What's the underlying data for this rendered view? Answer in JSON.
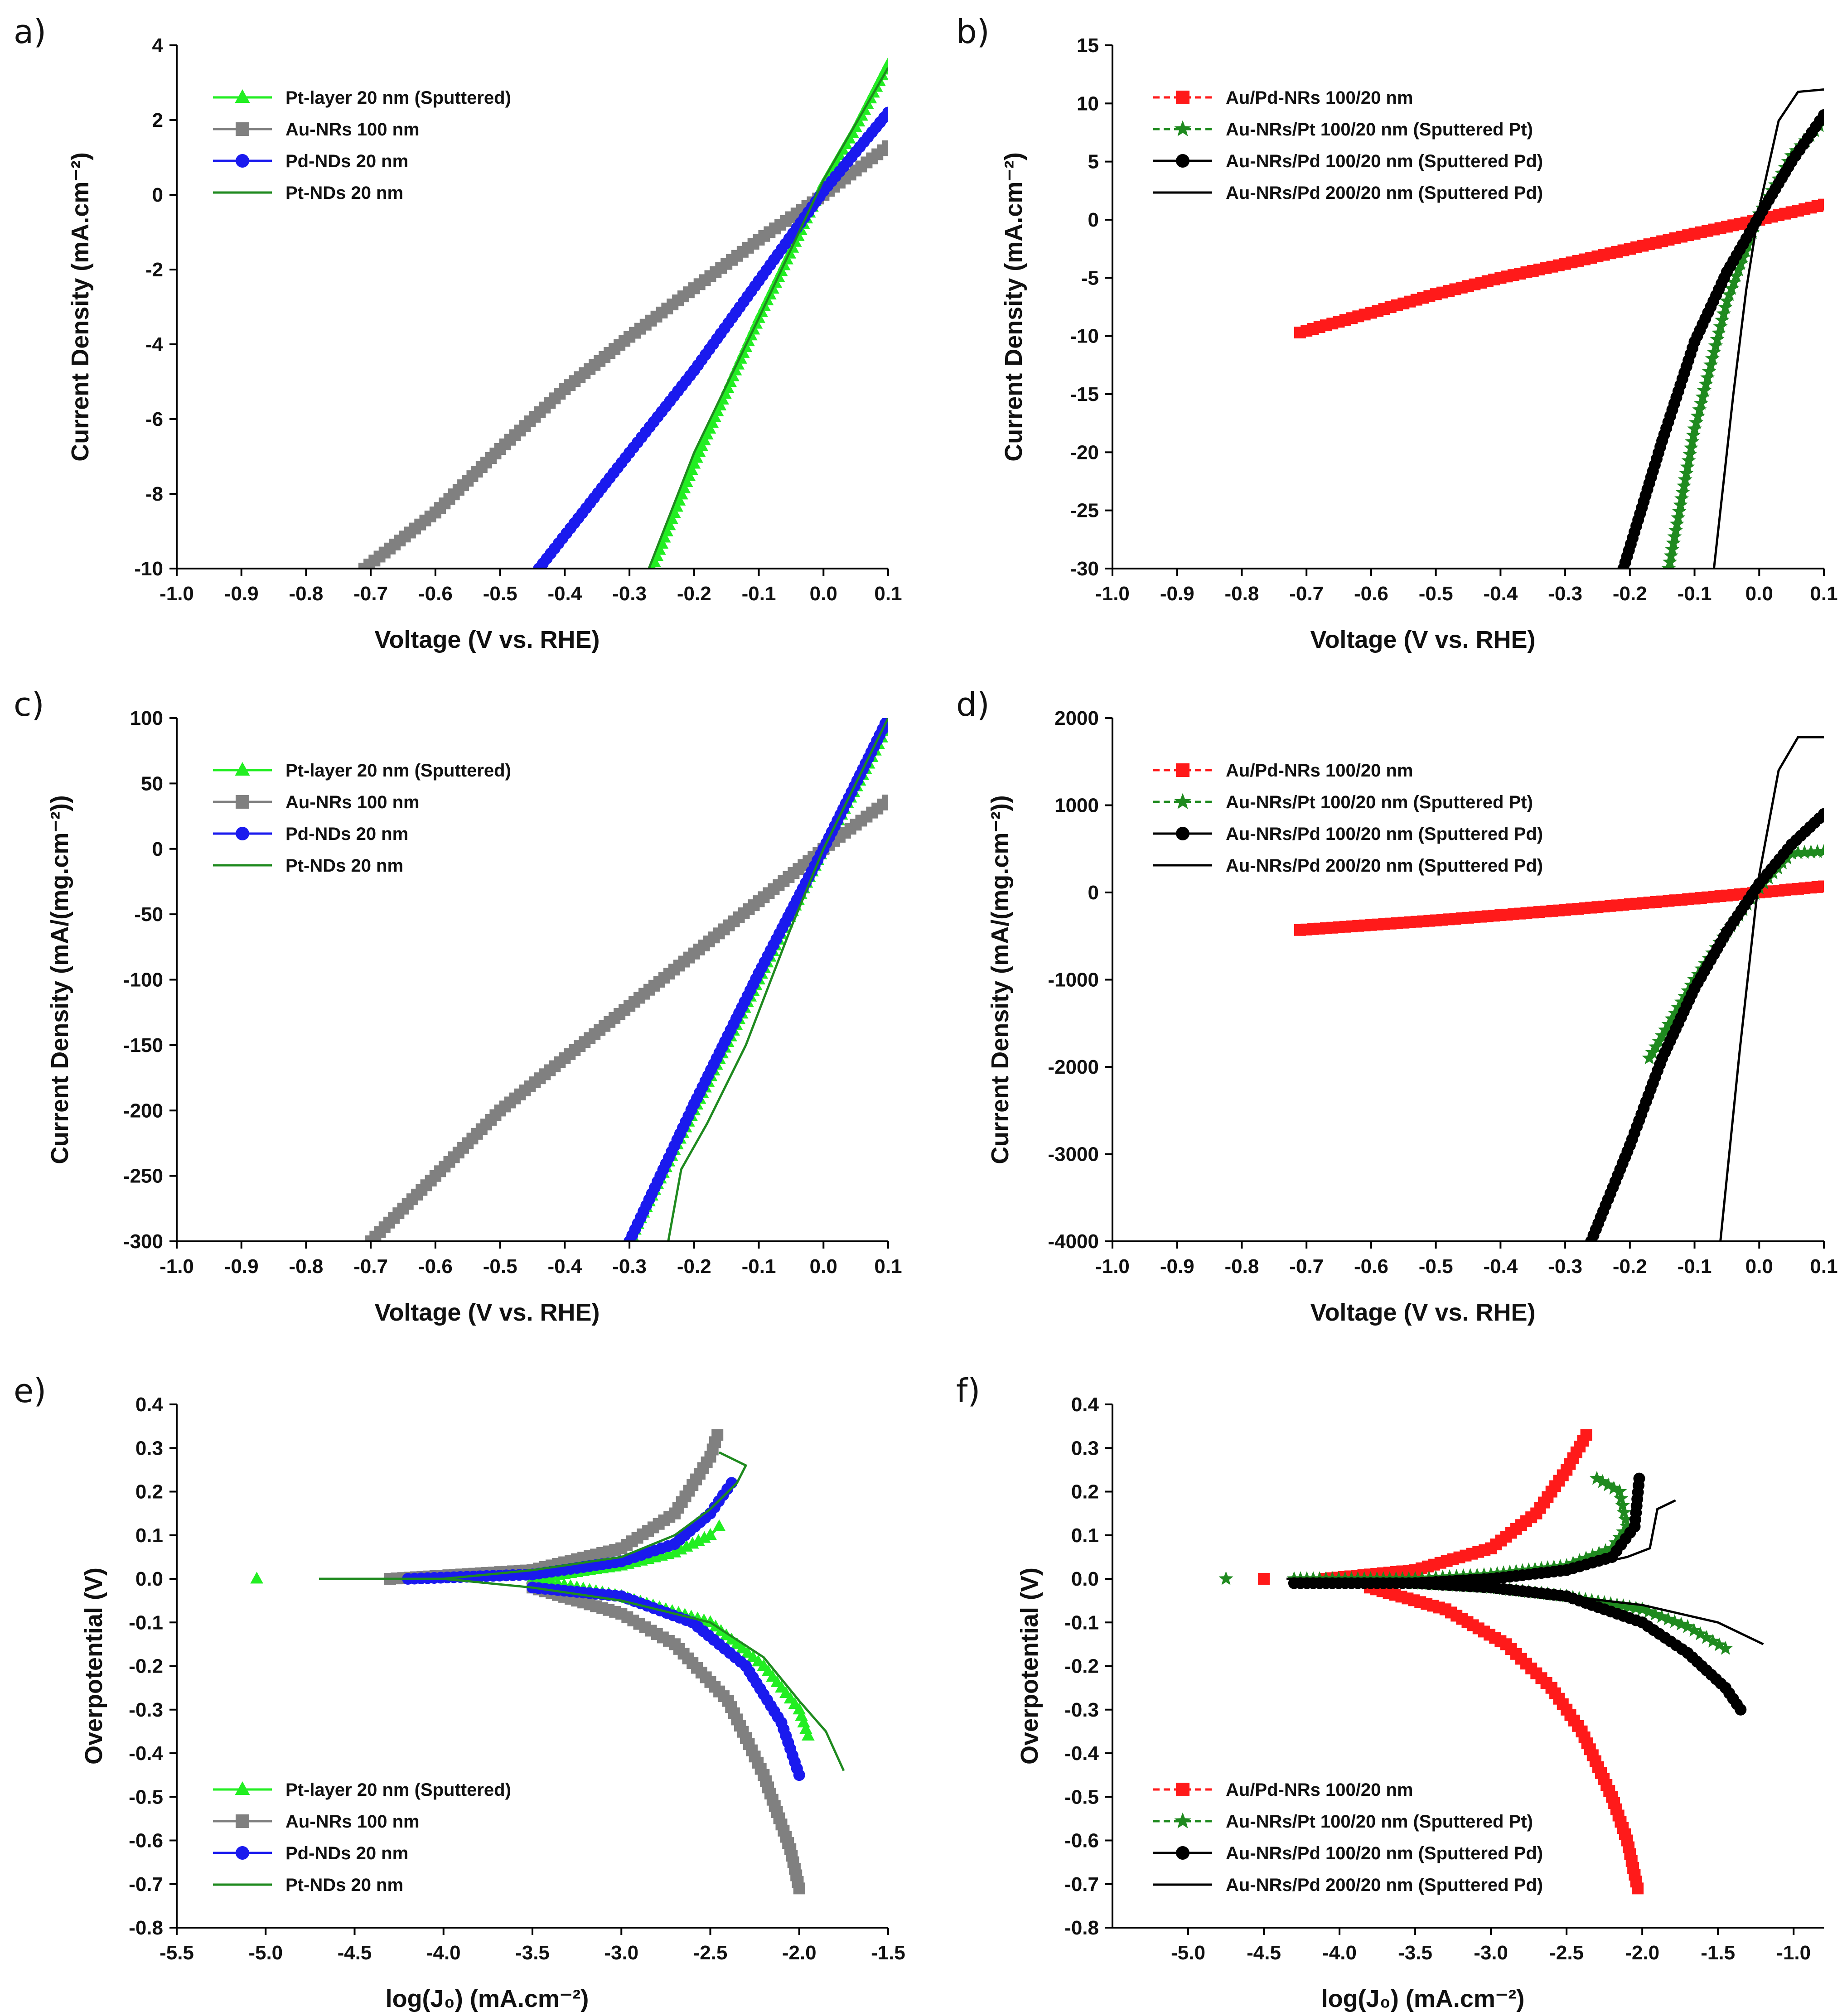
{
  "figure": {
    "description_free": true
  },
  "colors": {
    "bright_green": "#22ee22",
    "gray": "#808080",
    "blue": "#1a1aee",
    "dark_green": "#1f8a1f",
    "red": "#ff1a1a",
    "black": "#000000"
  },
  "chart_data": [
    {
      "panel": "a)",
      "type": "line",
      "xlabel": "Voltage (V vs. RHE)",
      "ylabel": "Current Density (mA.cm⁻²)",
      "xlim": [
        -1.0,
        0.1
      ],
      "ylim": [
        -10,
        4
      ],
      "xticks": [
        -1.0,
        -0.9,
        -0.8,
        -0.7,
        -0.6,
        -0.5,
        -0.4,
        -0.3,
        -0.2,
        -0.1,
        0.0,
        0.1
      ],
      "xtick_labels": [
        "-1.0",
        "-0.9",
        "-0.8",
        "-0.7",
        "-0.6",
        "-0.5",
        "-0.4",
        "-0.3",
        "-0.2",
        "-0.1",
        "0.0",
        "0.1"
      ],
      "yticks": [
        -10,
        -8,
        -6,
        -4,
        -2,
        0,
        2,
        4
      ],
      "ytick_labels": [
        "-10",
        "-8",
        "-6",
        "-4",
        "-2",
        "0",
        "2",
        "4"
      ],
      "legend_position": "top-left",
      "series": [
        {
          "name": "Pt-layer 20 nm (Sputtered)",
          "color": "#22ee22",
          "marker": "triangle",
          "line": "solid",
          "x": [
            -0.265,
            -0.2,
            -0.1,
            0.0,
            0.05,
            0.1
          ],
          "y": [
            -10,
            -7.2,
            -3.3,
            0.3,
            1.8,
            3.5
          ]
        },
        {
          "name": "Au-NRs 100 nm",
          "color": "#808080",
          "marker": "square",
          "line": "solid",
          "x": [
            -0.71,
            -0.6,
            -0.5,
            -0.4,
            -0.3,
            -0.2,
            -0.1,
            0.0,
            0.1
          ],
          "y": [
            -10,
            -8.5,
            -6.8,
            -5.2,
            -3.8,
            -2.5,
            -1.2,
            0.0,
            1.3
          ]
        },
        {
          "name": "Pd-NDs 20 nm",
          "color": "#1a1aee",
          "marker": "circle",
          "line": "solid",
          "x": [
            -0.44,
            -0.3,
            -0.2,
            -0.1,
            0.0,
            0.1
          ],
          "y": [
            -10,
            -6.9,
            -4.7,
            -2.3,
            0.1,
            2.2
          ]
        },
        {
          "name": "Pt-NDs 20 nm",
          "color": "#1f8a1f",
          "marker": "none",
          "line": "solid",
          "x": [
            -0.27,
            -0.2,
            -0.1,
            0.0,
            0.1
          ],
          "y": [
            -10,
            -6.9,
            -3.3,
            0.4,
            3.4
          ]
        }
      ]
    },
    {
      "panel": "b)",
      "type": "line",
      "xlabel": "Voltage (V vs. RHE)",
      "ylabel": "Current Density (mA.cm⁻²)",
      "xlim": [
        -1.0,
        0.1
      ],
      "ylim": [
        -30,
        15
      ],
      "xticks": [
        -1.0,
        -0.9,
        -0.8,
        -0.7,
        -0.6,
        -0.5,
        -0.4,
        -0.3,
        -0.2,
        -0.1,
        0.0,
        0.1
      ],
      "xtick_labels": [
        "-1.0",
        "-0.9",
        "-0.8",
        "-0.7",
        "-0.6",
        "-0.5",
        "-0.4",
        "-0.3",
        "-0.2",
        "-0.1",
        "0.0",
        "0.1"
      ],
      "yticks": [
        -30,
        -25,
        -20,
        -15,
        -10,
        -5,
        0,
        5,
        10,
        15
      ],
      "ytick_labels": [
        "-30",
        "-25",
        "-20",
        "-15",
        "-10",
        "-5",
        "0",
        "5",
        "10",
        "15"
      ],
      "legend_position": "top-left",
      "series": [
        {
          "name": "Au/Pd-NRs 100/20 nm",
          "color": "#ff1a1a",
          "marker": "square",
          "line": "dashed",
          "x": [
            -0.71,
            -0.6,
            -0.5,
            -0.4,
            -0.3,
            -0.2,
            -0.1,
            0.0,
            0.1
          ],
          "y": [
            -9.7,
            -8.0,
            -6.4,
            -5.0,
            -3.8,
            -2.5,
            -1.2,
            0.0,
            1.3
          ]
        },
        {
          "name": "Au-NRs/Pt 100/20 nm (Sputtered Pt)",
          "color": "#1f8a1f",
          "marker": "star",
          "line": "dashed",
          "x": [
            -0.14,
            -0.1,
            -0.05,
            0.0,
            0.05,
            0.1
          ],
          "y": [
            -30,
            -18,
            -7,
            0.5,
            5.5,
            8.5
          ]
        },
        {
          "name": "Au-NRs/Pd 100/20 nm (Sputtered Pd)",
          "color": "#000000",
          "marker": "circle",
          "line": "solid",
          "x": [
            -0.21,
            -0.15,
            -0.1,
            -0.05,
            0.0,
            0.05,
            0.1
          ],
          "y": [
            -30,
            -19,
            -10.5,
            -4.5,
            0.3,
            5.0,
            9.0
          ]
        },
        {
          "name": "Au-NRs/Pd 200/20 nm (Sputtered Pd)",
          "color": "#000000",
          "marker": "none",
          "line": "solid",
          "x": [
            -0.07,
            -0.04,
            -0.02,
            0.0,
            0.03,
            0.06,
            0.1
          ],
          "y": [
            -30,
            -15,
            -6,
            1.0,
            8.5,
            11.0,
            11.2
          ]
        }
      ]
    },
    {
      "panel": "c)",
      "type": "line",
      "xlabel": "Voltage (V vs. RHE)",
      "ylabel": "Current Density (mA/(mg.cm⁻²))",
      "xlim": [
        -1.0,
        0.1
      ],
      "ylim": [
        -300,
        100
      ],
      "xticks": [
        -1.0,
        -0.9,
        -0.8,
        -0.7,
        -0.6,
        -0.5,
        -0.4,
        -0.3,
        -0.2,
        -0.1,
        0.0,
        0.1
      ],
      "xtick_labels": [
        "-1.0",
        "-0.9",
        "-0.8",
        "-0.7",
        "-0.6",
        "-0.5",
        "-0.4",
        "-0.3",
        "-0.2",
        "-0.1",
        "0.0",
        "0.1"
      ],
      "yticks": [
        -300,
        -250,
        -200,
        -150,
        -100,
        -50,
        0,
        50,
        100
      ],
      "ytick_labels": [
        "-300",
        "-250",
        "-200",
        "-150",
        "-100",
        "-50",
        "0",
        "50",
        "100"
      ],
      "legend_position": "top-left",
      "series": [
        {
          "name": "Pt-layer 20 nm (Sputtered)",
          "color": "#22ee22",
          "marker": "triangle",
          "line": "solid",
          "x": [
            -0.3,
            -0.2,
            -0.1,
            0.0,
            0.07,
            0.1
          ],
          "y": [
            -300,
            -200,
            -100,
            0,
            65,
            95
          ]
        },
        {
          "name": "Au-NRs 100 nm",
          "color": "#808080",
          "marker": "square",
          "line": "solid",
          "x": [
            -0.7,
            -0.6,
            -0.5,
            -0.4,
            -0.3,
            -0.2,
            -0.1,
            0.0,
            0.1
          ],
          "y": [
            -300,
            -250,
            -200,
            -160,
            -120,
            -80,
            -40,
            0,
            37
          ]
        },
        {
          "name": "Pd-NDs 20 nm",
          "color": "#1a1aee",
          "marker": "circle",
          "line": "solid",
          "x": [
            -0.3,
            -0.2,
            -0.1,
            0.0,
            0.1
          ],
          "y": [
            -300,
            -195,
            -95,
            0,
            100
          ]
        },
        {
          "name": "Pt-NDs 20 nm",
          "color": "#1f8a1f",
          "marker": "none",
          "line": "solid",
          "x": [
            -0.24,
            -0.22,
            -0.18,
            -0.12,
            -0.05,
            0.0,
            0.1
          ],
          "y": [
            -300,
            -245,
            -210,
            -150,
            -60,
            0,
            100
          ]
        }
      ]
    },
    {
      "panel": "d)",
      "type": "line",
      "xlabel": "Voltage (V vs. RHE)",
      "ylabel": "Current Density (mA/(mg.cm⁻²))",
      "xlim": [
        -1.0,
        0.1
      ],
      "ylim": [
        -4000,
        2000
      ],
      "xticks": [
        -1.0,
        -0.9,
        -0.8,
        -0.7,
        -0.6,
        -0.5,
        -0.4,
        -0.3,
        -0.2,
        -0.1,
        0.0,
        0.1
      ],
      "xtick_labels": [
        "-1.0",
        "-0.9",
        "-0.8",
        "-0.7",
        "-0.6",
        "-0.5",
        "-0.4",
        "-0.3",
        "-0.2",
        "-0.1",
        "0.0",
        "0.1"
      ],
      "yticks": [
        -4000,
        -3000,
        -2000,
        -1000,
        0,
        1000,
        2000
      ],
      "ytick_labels": [
        "-4000",
        "-3000",
        "-2000",
        "-1000",
        "0",
        "1000",
        "2000"
      ],
      "legend_position": "top-left",
      "series": [
        {
          "name": "Au/Pd-NRs 100/20 nm",
          "color": "#ff1a1a",
          "marker": "square",
          "line": "dashed",
          "x": [
            -0.71,
            -0.5,
            -0.3,
            -0.1,
            0.0,
            0.1
          ],
          "y": [
            -430,
            -320,
            -200,
            -70,
            0,
            70
          ]
        },
        {
          "name": "Au-NRs/Pt 100/20 nm (Sputtered Pt)",
          "color": "#1f8a1f",
          "marker": "star",
          "line": "dashed",
          "x": [
            -0.17,
            -0.1,
            -0.05,
            0.0,
            0.05,
            0.1
          ],
          "y": [
            -1900,
            -1000,
            -450,
            50,
            450,
            470
          ]
        },
        {
          "name": "Au-NRs/Pd 100/20 nm (Sputtered Pd)",
          "color": "#000000",
          "marker": "circle",
          "line": "solid",
          "x": [
            -0.26,
            -0.2,
            -0.15,
            -0.1,
            -0.05,
            0.0,
            0.05,
            0.1
          ],
          "y": [
            -4000,
            -2900,
            -1900,
            -1100,
            -450,
            100,
            550,
            900
          ]
        },
        {
          "name": "Au-NRs/Pd 200/20 nm (Sputtered Pd)",
          "color": "#000000",
          "marker": "none",
          "line": "solid",
          "x": [
            -0.06,
            -0.03,
            0.0,
            0.03,
            0.06,
            0.1
          ],
          "y": [
            -4000,
            -1800,
            200,
            1400,
            1780,
            1780
          ]
        }
      ]
    },
    {
      "panel": "e)",
      "type": "line",
      "xlabel": "log(J₀) (mA.cm⁻²)",
      "ylabel": "Overpotential (V)",
      "xlim": [
        -5.5,
        -1.5
      ],
      "ylim": [
        -0.8,
        0.4
      ],
      "xticks": [
        -5.5,
        -5.0,
        -4.5,
        -4.0,
        -3.5,
        -3.0,
        -2.5,
        -2.0,
        -1.5
      ],
      "xtick_labels": [
        "-5.5",
        "-5.0",
        "-4.5",
        "-4.0",
        "-3.5",
        "-3.0",
        "-2.5",
        "-2.0",
        "-1.5"
      ],
      "yticks": [
        -0.8,
        -0.7,
        -0.6,
        -0.5,
        -0.4,
        -0.3,
        -0.2,
        -0.1,
        0.0,
        0.1,
        0.2,
        0.3,
        0.4
      ],
      "ytick_labels": [
        "-0.8",
        "-0.7",
        "-0.6",
        "-0.5",
        "-0.4",
        "-0.3",
        "-0.2",
        "-0.1",
        "0.0",
        "0.1",
        "0.2",
        "0.3",
        "0.4"
      ],
      "legend_position": "bottom-left",
      "series": [
        {
          "name": "Pt-layer 20 nm (Sputtered)",
          "color": "#22ee22",
          "marker": "triangle",
          "line": "solid",
          "x": [
            -3.5,
            -3.0,
            -2.7,
            -2.5,
            -2.45,
            null,
            -3.5,
            -3.0,
            -2.5,
            -2.2,
            -2.0,
            -1.95
          ],
          "y": [
            0.0,
            0.03,
            0.06,
            0.1,
            0.12,
            null,
            0.0,
            -0.04,
            -0.1,
            -0.2,
            -0.3,
            -0.36
          ]
        },
        {
          "name": "Au-NRs 100 nm",
          "color": "#808080",
          "marker": "square",
          "line": "solid",
          "x": [
            -4.3,
            -3.5,
            -3.0,
            -2.7,
            -2.5,
            -2.46,
            null,
            -3.5,
            -3.0,
            -2.7,
            -2.4,
            -2.2,
            -2.05,
            -2.0
          ],
          "y": [
            0.0,
            0.02,
            0.07,
            0.15,
            0.28,
            0.33,
            null,
            -0.02,
            -0.08,
            -0.15,
            -0.28,
            -0.45,
            -0.62,
            -0.71
          ]
        },
        {
          "name": "Pd-NDs 20 nm",
          "color": "#1a1aee",
          "marker": "circle",
          "line": "solid",
          "x": [
            -4.2,
            -3.5,
            -3.0,
            -2.7,
            -2.5,
            -2.38,
            null,
            -3.5,
            -3.0,
            -2.6,
            -2.3,
            -2.1,
            -2.0
          ],
          "y": [
            0.0,
            0.01,
            0.04,
            0.08,
            0.15,
            0.22,
            null,
            -0.02,
            -0.04,
            -0.1,
            -0.2,
            -0.33,
            -0.45
          ]
        },
        {
          "name": "Pt-NDs 20 nm",
          "color": "#1f8a1f",
          "marker": "none",
          "line": "solid",
          "x": [
            -4.7,
            -4.0,
            -3.5,
            -3.0,
            -2.7,
            -2.5,
            -2.35,
            -2.3,
            -2.45,
            null,
            -4.0,
            -3.5,
            -3.0,
            -2.5,
            -2.2,
            -2.0,
            -1.85,
            -1.75
          ],
          "y": [
            0.0,
            0.0,
            0.02,
            0.05,
            0.1,
            0.16,
            0.22,
            0.26,
            0.29,
            null,
            0.0,
            -0.02,
            -0.05,
            -0.1,
            -0.18,
            -0.28,
            -0.35,
            -0.44
          ]
        }
      ],
      "extra_points": [
        {
          "series": "Pt-layer 20 nm (Sputtered)",
          "x": -5.05,
          "y": 0.0
        }
      ]
    },
    {
      "panel": "f)",
      "type": "line",
      "xlabel": "log(J₀) (mA.cm⁻²)",
      "ylabel": "Overpotential (V)",
      "xlim": [
        -5.5,
        -0.8
      ],
      "ylim": [
        -0.8,
        0.4
      ],
      "xticks": [
        -5.0,
        -4.5,
        -4.0,
        -3.5,
        -3.0,
        -2.5,
        -2.0,
        -1.5,
        -1.0
      ],
      "xtick_labels": [
        "-5.0",
        "-4.5",
        "-4.0",
        "-3.5",
        "-3.0",
        "-2.5",
        "-2.0",
        "-1.5",
        "-1.0"
      ],
      "yticks": [
        -0.8,
        -0.7,
        -0.6,
        -0.5,
        -0.4,
        -0.3,
        -0.2,
        -0.1,
        0.0,
        0.1,
        0.2,
        0.3,
        0.4
      ],
      "ytick_labels": [
        "-0.8",
        "-0.7",
        "-0.6",
        "-0.5",
        "-0.4",
        "-0.3",
        "-0.2",
        "-0.1",
        "0.0",
        "0.1",
        "0.2",
        "0.3",
        "0.4"
      ],
      "legend_position": "bottom-left",
      "series": [
        {
          "name": "Au/Pd-NRs 100/20 nm",
          "color": "#ff1a1a",
          "marker": "square",
          "line": "dashed",
          "x": [
            -4.1,
            -3.5,
            -3.0,
            -2.7,
            -2.5,
            -2.37,
            null,
            -3.8,
            -3.3,
            -2.9,
            -2.6,
            -2.4,
            -2.2,
            -2.1,
            -2.03
          ],
          "y": [
            0.0,
            0.02,
            0.07,
            0.15,
            0.25,
            0.33,
            null,
            -0.02,
            -0.07,
            -0.15,
            -0.25,
            -0.35,
            -0.5,
            -0.6,
            -0.71
          ]
        },
        {
          "name": "Au-NRs/Pt 100/20 nm (Sputtered Pt)",
          "color": "#1f8a1f",
          "marker": "star",
          "line": "dashed",
          "x": [
            -4.3,
            -3.5,
            -3.0,
            -2.5,
            -2.2,
            -2.1,
            -2.15,
            -2.3,
            null,
            -3.5,
            -3.0,
            -2.5,
            -2.0,
            -1.7,
            -1.45
          ],
          "y": [
            0.0,
            0.0,
            0.01,
            0.03,
            0.07,
            0.12,
            0.2,
            0.23,
            null,
            -0.01,
            -0.02,
            -0.04,
            -0.07,
            -0.11,
            -0.16
          ]
        },
        {
          "name": "Au-NRs/Pd 100/20 nm (Sputtered Pd)",
          "color": "#000000",
          "marker": "circle",
          "line": "solid",
          "x": [
            -4.3,
            -3.5,
            -3.0,
            -2.5,
            -2.2,
            -2.05,
            -2.02,
            null,
            -3.5,
            -3.0,
            -2.5,
            -2.0,
            -1.7,
            -1.45,
            -1.35
          ],
          "y": [
            -0.01,
            -0.01,
            0.0,
            0.02,
            0.05,
            0.12,
            0.23,
            null,
            -0.01,
            -0.02,
            -0.04,
            -0.1,
            -0.17,
            -0.25,
            -0.3
          ]
        },
        {
          "name": "Au-NRs/Pd 200/20 nm (Sputtered Pd)",
          "color": "#000000",
          "marker": "none",
          "line": "solid",
          "x": [
            -4.35,
            -3.5,
            -3.0,
            -2.5,
            -2.1,
            -1.95,
            -1.9,
            -1.78,
            null,
            -3.5,
            -3.0,
            -2.5,
            -2.0,
            -1.5,
            -1.2
          ],
          "y": [
            0.0,
            0.0,
            0.01,
            0.02,
            0.05,
            0.07,
            0.16,
            0.18,
            null,
            -0.01,
            -0.02,
            -0.04,
            -0.06,
            -0.1,
            -0.15
          ]
        }
      ],
      "extra_points": [
        {
          "series": "Au-NRs/Pt 100/20 nm (Sputtered Pt)",
          "x": -4.75,
          "y": 0.0
        },
        {
          "series": "Au/Pd-NRs 100/20 nm",
          "x": -4.5,
          "y": 0.0
        }
      ]
    }
  ]
}
